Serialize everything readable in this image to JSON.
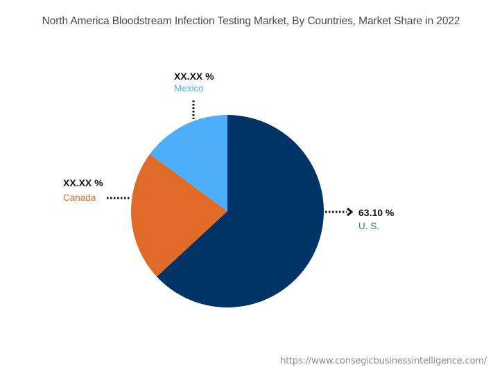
{
  "title": "North America Bloodstream Infection Testing Market, By Countries, Market Share in 2022",
  "source": "https://www.consegicbusinessintelligence.com/",
  "chart_data": {
    "type": "pie",
    "title": "North America Bloodstream Infection Testing Market, By Countries, Market Share in 2022",
    "categories": [
      "U. S.",
      "Canada",
      "Mexico"
    ],
    "values": [
      63.1,
      22.0,
      14.9
    ],
    "value_labels": [
      "63.10 %",
      "XX.XX %",
      "XX.XX %"
    ],
    "colors": [
      "#003366",
      "#E06A28",
      "#4DAEFB"
    ],
    "start_angle": "12 o'clock, clockwise",
    "legend": "none (inline callout labels)"
  },
  "labels": {
    "us": {
      "value": "63.10 %",
      "name": "U. S.",
      "color": "#3a6fb0"
    },
    "canada": {
      "value": "XX.XX %",
      "name": "Canada",
      "color": "#E06A28"
    },
    "mexico": {
      "value": "XX.XX %",
      "name": "Mexico",
      "color": "#4DAEFB"
    }
  }
}
